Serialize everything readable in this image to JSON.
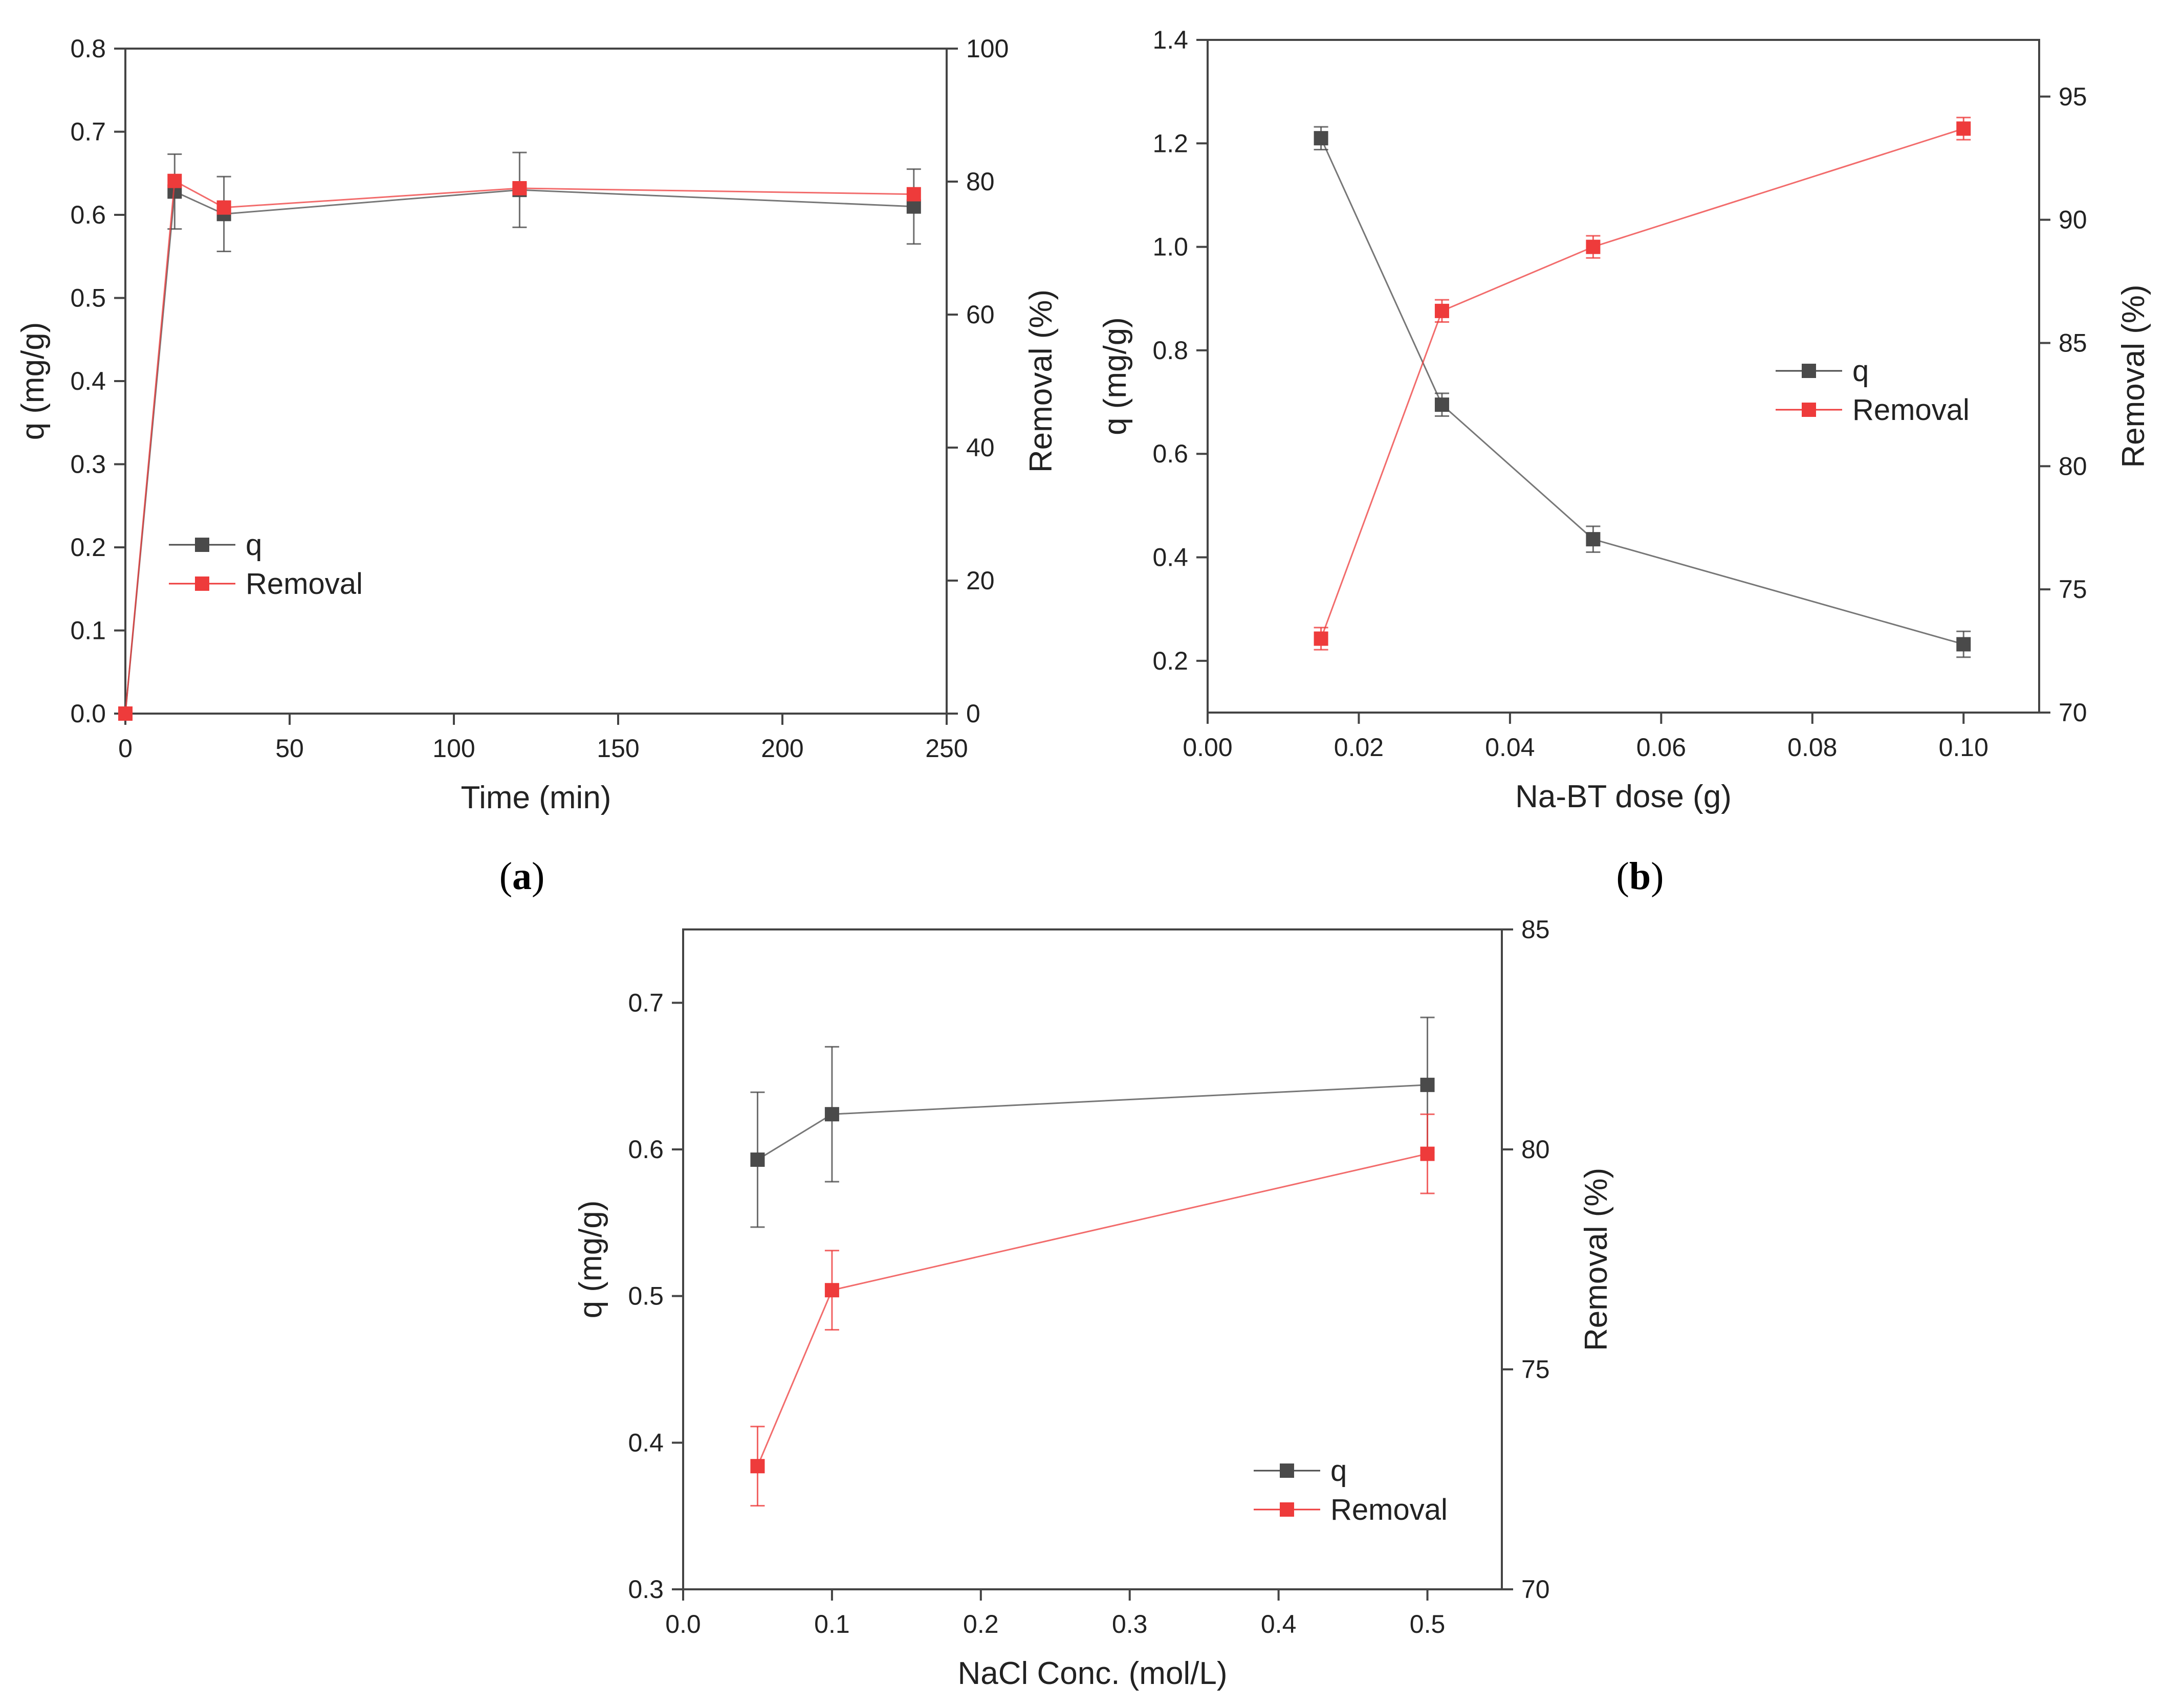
{
  "chart_data": [
    {
      "id": "a",
      "type": "line",
      "panel_label": "a",
      "xlabel": "Time (min)",
      "ylabel": "q (mg/g)",
      "y2label": "Removal (%)",
      "xlim": [
        0,
        250
      ],
      "ylim": [
        0,
        0.8
      ],
      "y2lim": [
        0,
        100
      ],
      "xticks": [
        0,
        50,
        100,
        150,
        200,
        250
      ],
      "xtick_labels": [
        "0",
        "50",
        "100",
        "150",
        "200",
        "250"
      ],
      "yticks": [
        0,
        0.1,
        0.2,
        0.3,
        0.4,
        0.5,
        0.6,
        0.7,
        0.8
      ],
      "ytick_labels": [
        "0.0",
        "0.1",
        "0.2",
        "0.3",
        "0.4",
        "0.5",
        "0.6",
        "0.7",
        "0.8"
      ],
      "y2ticks": [
        0,
        20,
        40,
        60,
        80,
        100
      ],
      "y2tick_labels": [
        "0",
        "20",
        "40",
        "60",
        "80",
        "100"
      ],
      "legend_position": "left-middle",
      "series": [
        {
          "name": "q",
          "axis": "left",
          "color": "#4a4a4a",
          "x": [
            0,
            15,
            30,
            120,
            240
          ],
          "y": [
            0,
            0.628,
            0.601,
            0.63,
            0.61
          ],
          "err": [
            0,
            0.045,
            0.045,
            0.045,
            0.045
          ]
        },
        {
          "name": "Removal",
          "axis": "right",
          "color": "#ee3b3b",
          "x": [
            0,
            15,
            30,
            120,
            240
          ],
          "y": [
            0,
            80.1,
            76.1,
            79.0,
            78.1
          ],
          "err": [
            0,
            0,
            0,
            0,
            0
          ]
        }
      ]
    },
    {
      "id": "b",
      "type": "line",
      "panel_label": "b",
      "xlabel": "Na-BT dose (g)",
      "ylabel": "q (mg/g)",
      "y2label": "Removal (%)",
      "xlim": [
        0,
        0.11
      ],
      "ylim": [
        0.1,
        1.4
      ],
      "y2lim": [
        70,
        97.3
      ],
      "xticks": [
        0,
        0.02,
        0.04,
        0.06,
        0.08,
        0.1
      ],
      "xtick_labels": [
        "0.00",
        "0.02",
        "0.04",
        "0.06",
        "0.08",
        "0.10"
      ],
      "yticks": [
        0.2,
        0.4,
        0.6,
        0.8,
        1.0,
        1.2,
        1.4
      ],
      "ytick_labels": [
        "0.2",
        "0.4",
        "0.6",
        "0.8",
        "1.0",
        "1.2",
        "1.4"
      ],
      "y2ticks": [
        70,
        75,
        80,
        85,
        90,
        95
      ],
      "y2tick_labels": [
        "70",
        "75",
        "80",
        "85",
        "90",
        "95"
      ],
      "legend_position": "right-middle",
      "series": [
        {
          "name": "q",
          "axis": "left",
          "color": "#4a4a4a",
          "x": [
            0.015,
            0.031,
            0.051,
            0.1
          ],
          "y": [
            1.21,
            0.695,
            0.435,
            0.232
          ],
          "err": [
            0.022,
            0.022,
            0.025,
            0.025
          ]
        },
        {
          "name": "Removal",
          "axis": "right",
          "color": "#ee3b3b",
          "x": [
            0.015,
            0.031,
            0.051,
            0.1
          ],
          "y": [
            73.0,
            86.3,
            88.9,
            93.7
          ],
          "err": [
            0.45,
            0.45,
            0.45,
            0.45
          ]
        }
      ]
    },
    {
      "id": "c",
      "type": "line",
      "panel_label": "",
      "xlabel": "NaCl Conc. (mol/L)",
      "ylabel": "q (mg/g)",
      "y2label": "Removal (%)",
      "xlim": [
        0,
        0.55
      ],
      "ylim": [
        0.3,
        0.75
      ],
      "y2lim": [
        70,
        85
      ],
      "xticks": [
        0,
        0.1,
        0.2,
        0.3,
        0.4,
        0.5
      ],
      "xtick_labels": [
        "0.0",
        "0.1",
        "0.2",
        "0.3",
        "0.4",
        "0.5"
      ],
      "yticks": [
        0.3,
        0.4,
        0.5,
        0.6,
        0.7
      ],
      "ytick_labels": [
        "0.3",
        "0.4",
        "0.5",
        "0.6",
        "0.7"
      ],
      "y2ticks": [
        70,
        75,
        80,
        85
      ],
      "y2tick_labels": [
        "70",
        "75",
        "80",
        "85"
      ],
      "legend_position": "bottom-right",
      "series": [
        {
          "name": "q",
          "axis": "left",
          "color": "#4a4a4a",
          "x": [
            0.05,
            0.1,
            0.5
          ],
          "y": [
            0.593,
            0.624,
            0.644
          ],
          "err": [
            0.046,
            0.046,
            0.046
          ]
        },
        {
          "name": "Removal",
          "axis": "right",
          "color": "#ee3b3b",
          "x": [
            0.05,
            0.1,
            0.5
          ],
          "y": [
            72.8,
            76.8,
            79.9
          ],
          "err": [
            0.9,
            0.9,
            0.9
          ]
        }
      ]
    }
  ],
  "panel_captions": {
    "a": "a",
    "b": "b"
  }
}
